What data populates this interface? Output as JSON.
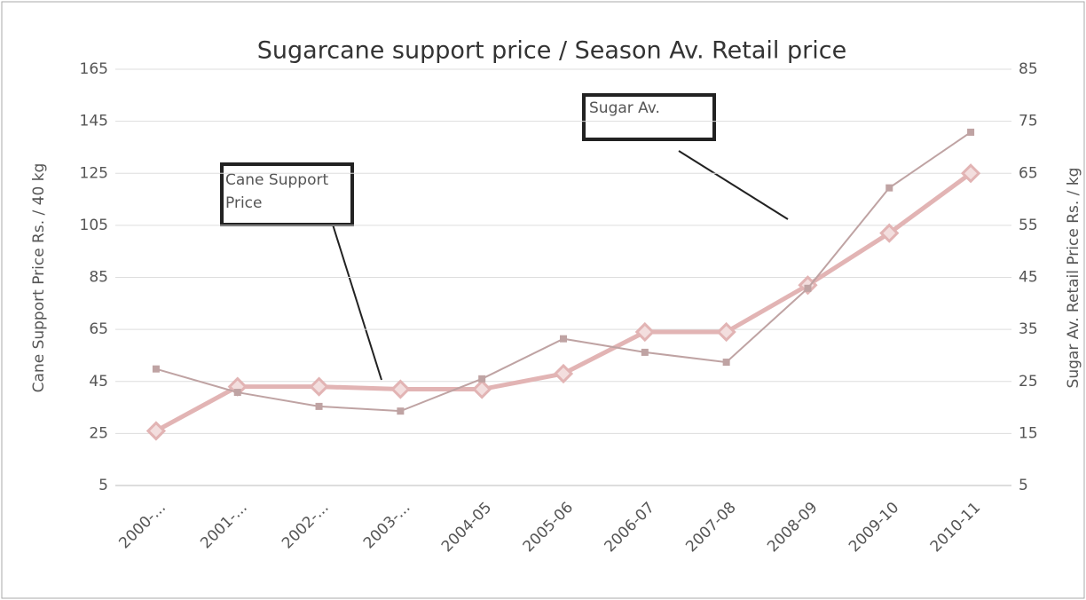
{
  "chart_data": {
    "type": "line",
    "title": "Sugarcane support price / Season Av. Retail price",
    "y_label": "Cane Support Price Rs. / 40 kg",
    "y2_label": "Sugar Av. Retail Price Rs. / kg",
    "categories": [
      "2000-...",
      "2001-...",
      "2002-...",
      "2003-...",
      "2004-05",
      "2005-06",
      "2006-07",
      "2007-08",
      "2008-09",
      "2009-10",
      "2010-11"
    ],
    "series": [
      {
        "color": "#e2b4b4",
        "marker": "diamond",
        "values": [
          26,
          43,
          43,
          42,
          42,
          48,
          64,
          64,
          82,
          102,
          125
        ]
      },
      {
        "color": "#bfa3a3",
        "marker": "square",
        "axis": "y2",
        "values": [
          27.4,
          22.9,
          20.2,
          19.3,
          25.5,
          33.2,
          30.6,
          28.7,
          42.9,
          62.2,
          72.9
        ]
      }
    ],
    "ylim": [
      5,
      165
    ],
    "yticks": [
      5,
      25,
      45,
      65,
      85,
      105,
      125,
      145,
      165
    ],
    "y2lim": [
      5,
      85
    ],
    "y2ticks": [
      5,
      15,
      25,
      35,
      45,
      55,
      65,
      75,
      85
    ],
    "grid": true,
    "annotations": [
      "Cane Support Price",
      "Sugar Av."
    ]
  }
}
